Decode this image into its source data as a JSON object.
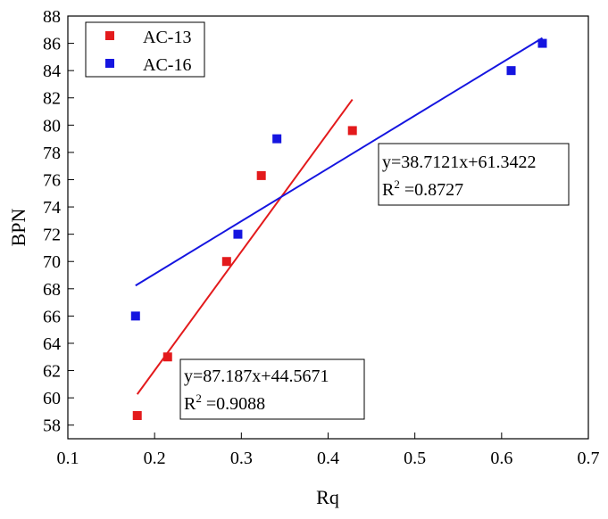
{
  "chart_data": {
    "type": "scatter",
    "title": "",
    "xlabel": "Rq",
    "ylabel": "BPN",
    "xlim": [
      0.1,
      0.7
    ],
    "ylim": [
      57,
      88
    ],
    "xticks": [
      0.1,
      0.2,
      0.3,
      0.4,
      0.5,
      0.6,
      0.7
    ],
    "yticks": [
      58,
      60,
      62,
      64,
      66,
      68,
      70,
      72,
      74,
      76,
      78,
      80,
      82,
      84,
      86,
      88
    ],
    "grid": false,
    "legend": "top-left",
    "series": [
      {
        "name": "AC-13",
        "color": "#e31a1c",
        "points": [
          {
            "x": 0.18,
            "y": 58.7
          },
          {
            "x": 0.215,
            "y": 63.0
          },
          {
            "x": 0.283,
            "y": 70.0
          },
          {
            "x": 0.323,
            "y": 76.3
          },
          {
            "x": 0.428,
            "y": 79.6
          }
        ],
        "fit": {
          "slope": 87.187,
          "intercept": 44.5671,
          "x_range": [
            0.18,
            0.428
          ]
        },
        "equation": "y=87.187x+44.5671",
        "r2_label": "R",
        "r2_sup": "2",
        "r2_value": " =0.9088"
      },
      {
        "name": "AC-16",
        "color": "#1515e0",
        "points": [
          {
            "x": 0.178,
            "y": 66.0
          },
          {
            "x": 0.296,
            "y": 72.0
          },
          {
            "x": 0.341,
            "y": 79.0
          },
          {
            "x": 0.611,
            "y": 84.0
          },
          {
            "x": 0.647,
            "y": 86.0
          }
        ],
        "fit": {
          "slope": 38.7121,
          "intercept": 61.3422,
          "x_range": [
            0.178,
            0.647
          ]
        },
        "equation": "y=38.7121x+61.3422",
        "r2_label": "R",
        "r2_sup": "2",
        "r2_value": " =0.8727"
      }
    ]
  }
}
